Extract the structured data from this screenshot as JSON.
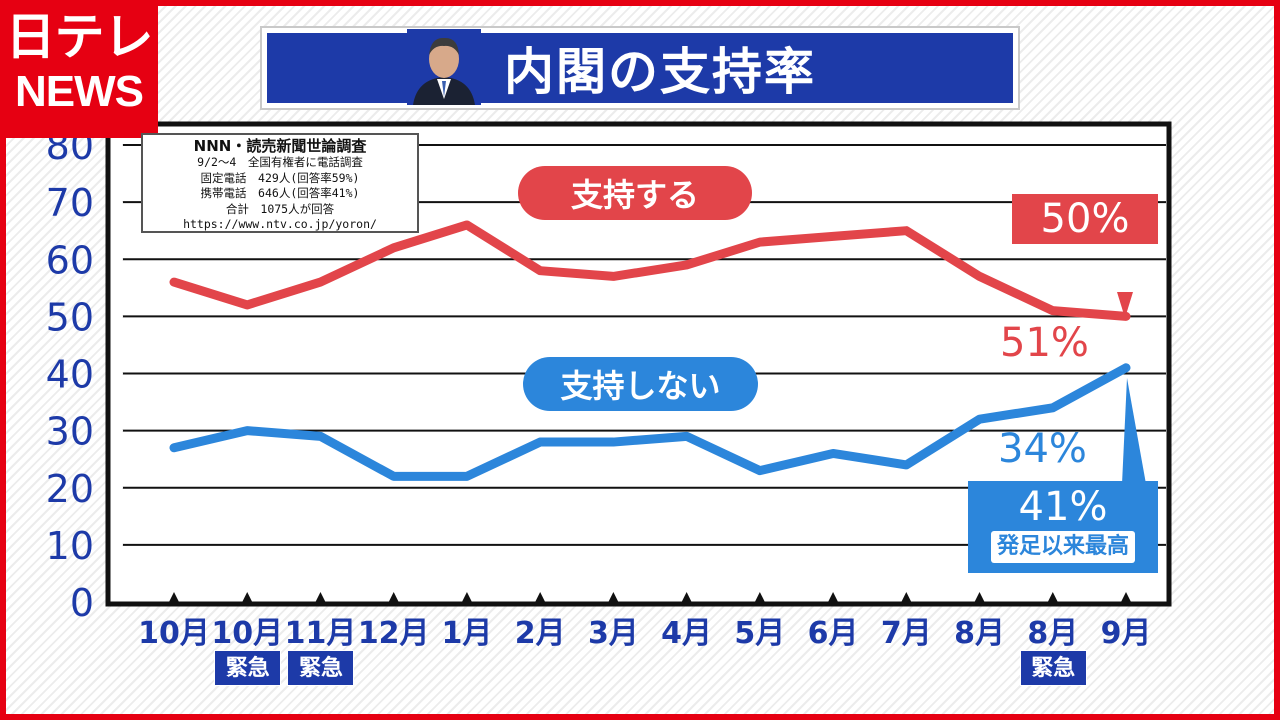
{
  "logo": {
    "line1": "日テレ",
    "line2": "NEWS"
  },
  "header": {
    "title": "内閣の支持率"
  },
  "source_box": {
    "line1": "NNN・読売新聞世論調査",
    "line2": "9/2～4　全国有権者に電話調査",
    "line3": "固定電話　429人(回答率59%)",
    "line4": "携帯電話　646人(回答率41%)",
    "line5": "合計　1075人が回答",
    "line6": "https://www.ntv.co.jp/yoron/"
  },
  "labels": {
    "support": "支持する",
    "nonsupport": "支持しない",
    "support_latest": "50%",
    "support_prev": "51%",
    "nonsupport_prev": "34%",
    "nonsupport_latest": "41%",
    "nonsupport_note": "発足以来最高",
    "emergency": "緊急"
  },
  "colors": {
    "support": "#e2454a",
    "nonsupport": "#2c86db",
    "accent": "#1d3aa8",
    "brand": "#e60012"
  },
  "chart_data": {
    "type": "line",
    "categories": [
      "10月",
      "10月",
      "11月",
      "12月",
      "1月",
      "2月",
      "3月",
      "4月",
      "5月",
      "6月",
      "7月",
      "8月",
      "8月",
      "9月"
    ],
    "emergency_flags": [
      false,
      true,
      true,
      false,
      false,
      false,
      false,
      false,
      false,
      false,
      false,
      false,
      true,
      false
    ],
    "series": [
      {
        "name": "支持する",
        "values": [
          56,
          52,
          56,
          62,
          66,
          58,
          57,
          59,
          63,
          64,
          65,
          57,
          51,
          50
        ]
      },
      {
        "name": "支持しない",
        "values": [
          27,
          30,
          29,
          22,
          22,
          28,
          28,
          29,
          23,
          26,
          24,
          32,
          34,
          41
        ]
      }
    ],
    "ylim": [
      0,
      80
    ],
    "yticks": [
      "0",
      "10",
      "20",
      "30",
      "40",
      "50",
      "60",
      "70",
      "80"
    ],
    "grid": true
  }
}
